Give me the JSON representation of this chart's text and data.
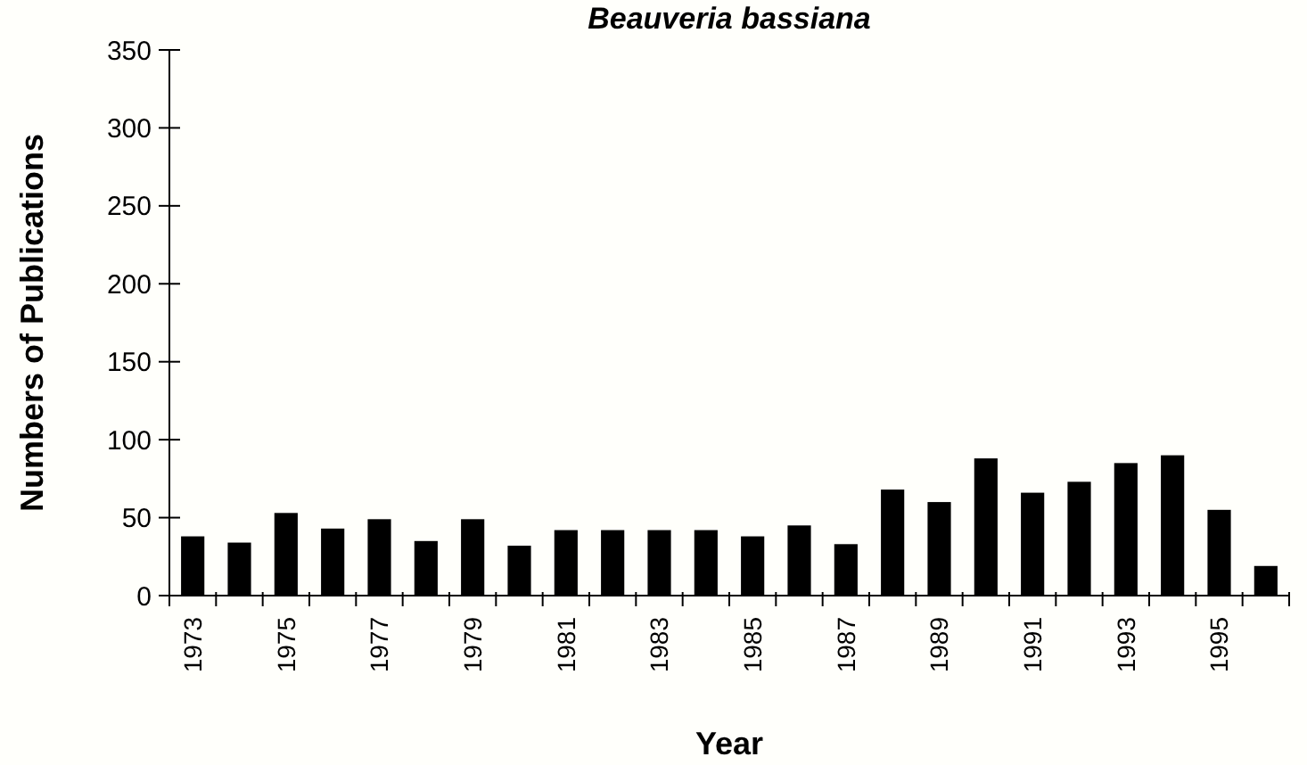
{
  "chart_data": {
    "type": "bar",
    "title": "Beauveria bassiana",
    "xlabel": "Year",
    "ylabel": "Numbers of Publications",
    "categories": [
      "1973",
      null,
      "1975",
      null,
      "1977",
      null,
      "1979",
      null,
      "1981",
      null,
      "1983",
      null,
      "1985",
      null,
      "1987",
      null,
      "1989",
      null,
      "1991",
      null,
      "1993",
      null,
      "1995",
      null
    ],
    "values": [
      38,
      34,
      53,
      43,
      49,
      35,
      49,
      32,
      42,
      42,
      42,
      42,
      38,
      45,
      33,
      68,
      60,
      88,
      66,
      73,
      85,
      90,
      55,
      19
    ],
    "color": "#000000",
    "ylim": [
      0,
      350
    ],
    "yticks": [
      0,
      50,
      100,
      150,
      200,
      250,
      300,
      350
    ],
    "grid": false
  }
}
